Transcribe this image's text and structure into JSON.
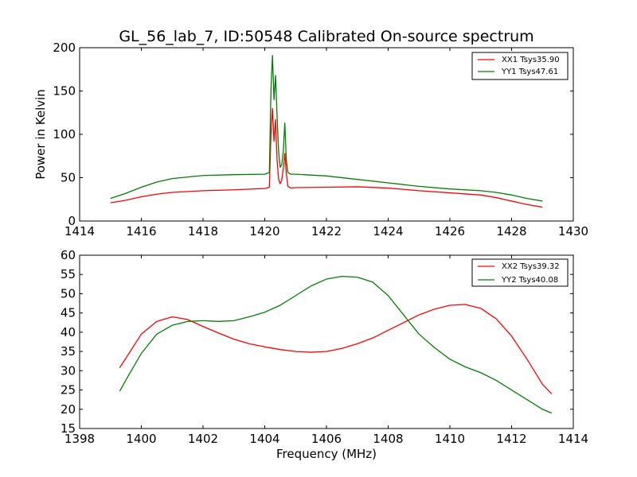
{
  "figure": {
    "title": "GL_56_lab_7, ID:50548 Calibrated On-source spectrum"
  },
  "chart_data": [
    {
      "type": "line",
      "title": "GL_56_lab_7, ID:50548 Calibrated On-source spectrum",
      "xlabel": "",
      "ylabel": "Power in Kelvin",
      "xlim": [
        1414,
        1430
      ],
      "ylim": [
        0,
        200
      ],
      "xticks": [
        1414,
        1416,
        1418,
        1420,
        1422,
        1424,
        1426,
        1428,
        1430
      ],
      "yticks": [
        0,
        50,
        100,
        150,
        200
      ],
      "grid": false,
      "legend_position": "top-right",
      "series": [
        {
          "name": "XX1 Tsys35.90",
          "color": "#ff0000",
          "x": [
            1415.0,
            1415.5,
            1416.0,
            1416.5,
            1417.0,
            1418.0,
            1419.0,
            1420.0,
            1420.15,
            1420.2,
            1420.25,
            1420.3,
            1420.35,
            1420.4,
            1420.45,
            1420.5,
            1420.55,
            1420.6,
            1420.65,
            1420.7,
            1420.75,
            1420.85,
            1421.0,
            1422.0,
            1423.0,
            1424.0,
            1425.0,
            1426.0,
            1427.0,
            1427.5,
            1428.0,
            1428.5,
            1429.0
          ],
          "y": [
            21,
            24,
            28,
            31,
            33,
            35,
            36,
            37.5,
            39,
            100,
            130,
            92,
            117,
            70,
            48,
            43,
            47,
            60,
            78,
            55,
            40,
            38,
            38.5,
            39,
            39.5,
            38,
            35,
            32.5,
            30,
            27,
            23,
            19,
            16
          ]
        },
        {
          "name": "YY1 Tsys47.61",
          "color": "#008000",
          "x": [
            1415.0,
            1415.5,
            1416.0,
            1416.5,
            1417.0,
            1418.0,
            1419.0,
            1420.0,
            1420.15,
            1420.2,
            1420.25,
            1420.3,
            1420.35,
            1420.4,
            1420.45,
            1420.5,
            1420.55,
            1420.6,
            1420.65,
            1420.7,
            1420.75,
            1420.85,
            1421.0,
            1422.0,
            1423.0,
            1424.0,
            1425.0,
            1426.0,
            1427.0,
            1427.5,
            1428.0,
            1428.5,
            1429.0
          ],
          "y": [
            26,
            32,
            39,
            45,
            49,
            52.5,
            53.5,
            54,
            56,
            150,
            191,
            140,
            168,
            120,
            80,
            62,
            65,
            80,
            113,
            70,
            56,
            54,
            54,
            52,
            48,
            44,
            40,
            37,
            35,
            33,
            30,
            26,
            23
          ]
        }
      ]
    },
    {
      "type": "line",
      "title": "",
      "xlabel": "Frequency (MHz)",
      "ylabel": "",
      "xlim": [
        1398,
        1414
      ],
      "ylim": [
        15,
        60
      ],
      "xticks": [
        1398,
        1400,
        1402,
        1404,
        1406,
        1408,
        1410,
        1412,
        1414
      ],
      "yticks": [
        15,
        20,
        25,
        30,
        35,
        40,
        45,
        50,
        55,
        60
      ],
      "grid": false,
      "legend_position": "top-right",
      "series": [
        {
          "name": "XX2 Tsys39.32",
          "color": "#ff0000",
          "x": [
            1399.3,
            1399.6,
            1400.0,
            1400.5,
            1401.0,
            1401.5,
            1402.0,
            1402.5,
            1403.0,
            1403.5,
            1404.0,
            1404.5,
            1405.0,
            1405.5,
            1406.0,
            1406.5,
            1407.0,
            1407.5,
            1408.0,
            1408.5,
            1409.0,
            1409.5,
            1410.0,
            1410.5,
            1411.0,
            1411.5,
            1412.0,
            1412.5,
            1413.0,
            1413.3
          ],
          "y": [
            30.8,
            34.5,
            39.5,
            42.8,
            44.0,
            43.3,
            41.5,
            39.8,
            38.2,
            37.0,
            36.2,
            35.5,
            35.0,
            34.8,
            35.0,
            35.8,
            37.0,
            38.5,
            40.5,
            42.5,
            44.5,
            46.0,
            47.0,
            47.2,
            46.2,
            43.5,
            39.0,
            33.0,
            26.5,
            24.0
          ]
        },
        {
          "name": "YY2 Tsys40.08",
          "color": "#008000",
          "x": [
            1399.3,
            1399.6,
            1400.0,
            1400.5,
            1401.0,
            1401.5,
            1402.0,
            1402.5,
            1403.0,
            1403.5,
            1404.0,
            1404.5,
            1405.0,
            1405.5,
            1406.0,
            1406.5,
            1407.0,
            1407.5,
            1408.0,
            1408.5,
            1409.0,
            1409.5,
            1410.0,
            1410.5,
            1411.0,
            1411.5,
            1412.0,
            1412.5,
            1413.0,
            1413.3
          ],
          "y": [
            24.7,
            29.0,
            34.5,
            39.5,
            41.8,
            42.8,
            43.0,
            42.8,
            43.0,
            44.0,
            45.2,
            47.0,
            49.5,
            52.0,
            53.8,
            54.5,
            54.3,
            53.0,
            49.5,
            44.5,
            39.5,
            36.0,
            33.0,
            31.0,
            29.5,
            27.5,
            25.0,
            22.5,
            20.0,
            19.0
          ]
        }
      ]
    }
  ]
}
